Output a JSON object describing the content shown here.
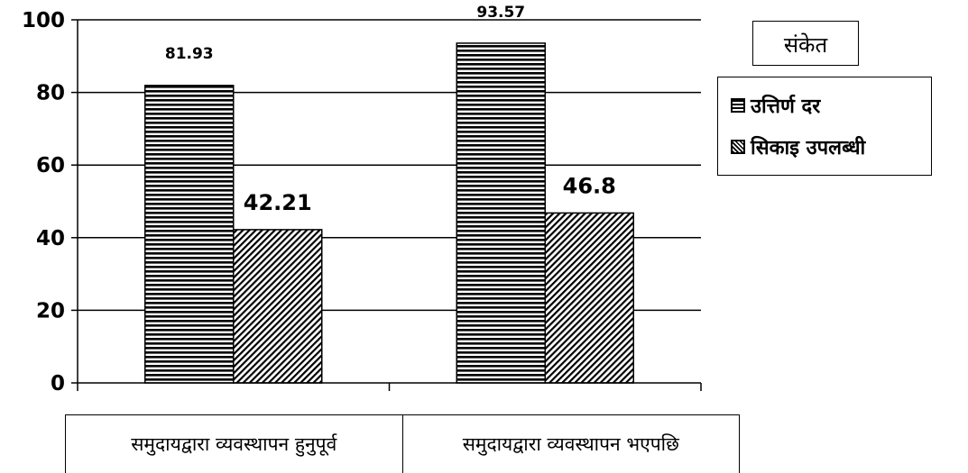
{
  "chart_data": {
    "type": "bar",
    "categories": [
      "समुदायद्वारा व्यवस्थापन हुनुपूर्व",
      "समुदायद्वारा व्यवस्थापन भएपछि"
    ],
    "series": [
      {
        "name": "उत्तिर्ण दर",
        "values": [
          81.93,
          93.57
        ],
        "pattern": "horizontal-stripes"
      },
      {
        "name": "सिकाइ उपलब्धी",
        "values": [
          42.21,
          46.8
        ],
        "pattern": "diagonal-hatch"
      }
    ],
    "data_labels": [
      [
        "81.93",
        "93.57"
      ],
      [
        "42.21",
        "46.8"
      ]
    ],
    "y_ticks": [
      "0",
      "20",
      "40",
      "60",
      "80",
      "100"
    ],
    "ylim": [
      0,
      100
    ],
    "grid": true,
    "legend_title": "संकेत",
    "legend_placement": "top-right",
    "colors": {
      "bar_stroke": "#000000",
      "bar_fill": "#ffffff",
      "grid": "#000000"
    }
  }
}
